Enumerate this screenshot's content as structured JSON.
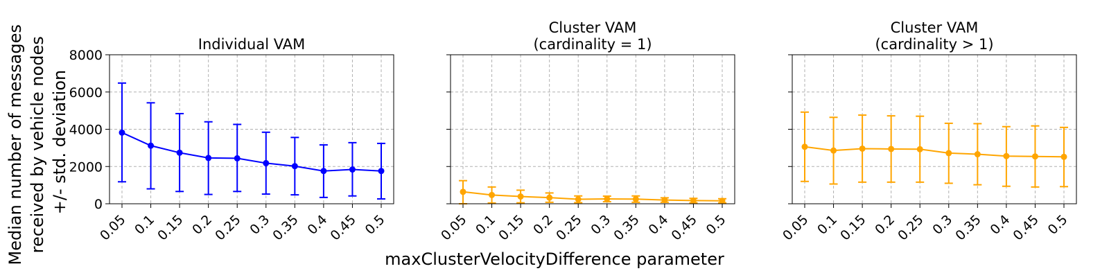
{
  "figure": {
    "ylabel_lines": [
      "Median number of messages",
      "received by vehicle nodes",
      "+/- std. deviation"
    ],
    "xlabel": "maxClusterVelocityDifference parameter"
  },
  "chart_data": [
    {
      "type": "line",
      "title_lines": [
        "Individual VAM"
      ],
      "color": "#0000ff",
      "categories": [
        "0.05",
        "0.1",
        "0.15",
        "0.2",
        "0.25",
        "0.3",
        "0.35",
        "0.4",
        "0.45",
        "0.5"
      ],
      "values": [
        3820,
        3120,
        2740,
        2460,
        2440,
        2180,
        2020,
        1760,
        1840,
        1760
      ],
      "error_upper": [
        6480,
        5420,
        4840,
        4400,
        4260,
        3840,
        3560,
        3160,
        3280,
        3240
      ],
      "error_lower": [
        1180,
        800,
        660,
        500,
        660,
        520,
        480,
        340,
        420,
        260
      ],
      "ylim": [
        0,
        8000
      ],
      "yticks": [
        0,
        2000,
        4000,
        6000,
        8000
      ],
      "show_ytick_labels": true,
      "grid": true
    },
    {
      "type": "line",
      "title_lines": [
        "Cluster VAM",
        "(cardinality = 1)"
      ],
      "color": "#ffa500",
      "categories": [
        "0.05",
        "0.1",
        "0.15",
        "0.2",
        "0.25",
        "0.3",
        "0.35",
        "0.4",
        "0.45",
        "0.5"
      ],
      "values": [
        640,
        470,
        390,
        330,
        240,
        260,
        250,
        200,
        170,
        160
      ],
      "error_upper": [
        1240,
        900,
        730,
        580,
        420,
        410,
        420,
        320,
        290,
        270
      ],
      "error_lower": [
        0,
        40,
        50,
        80,
        60,
        110,
        80,
        80,
        50,
        50
      ],
      "ylim": [
        0,
        8000
      ],
      "yticks": [
        0,
        2000,
        4000,
        6000,
        8000
      ],
      "show_ytick_labels": false,
      "grid": true
    },
    {
      "type": "line",
      "title_lines": [
        "Cluster VAM",
        "(cardinality > 1)"
      ],
      "color": "#ffa500",
      "categories": [
        "0.05",
        "0.1",
        "0.15",
        "0.2",
        "0.25",
        "0.3",
        "0.35",
        "0.4",
        "0.45",
        "0.5"
      ],
      "values": [
        3060,
        2860,
        2960,
        2940,
        2930,
        2720,
        2660,
        2560,
        2540,
        2520
      ],
      "error_upper": [
        4920,
        4640,
        4760,
        4720,
        4700,
        4320,
        4300,
        4140,
        4180,
        4100
      ],
      "error_lower": [
        1200,
        1060,
        1160,
        1160,
        1160,
        1100,
        1020,
        940,
        900,
        920
      ],
      "ylim": [
        0,
        8000
      ],
      "yticks": [
        0,
        2000,
        4000,
        6000,
        8000
      ],
      "show_ytick_labels": false,
      "grid": true
    }
  ]
}
